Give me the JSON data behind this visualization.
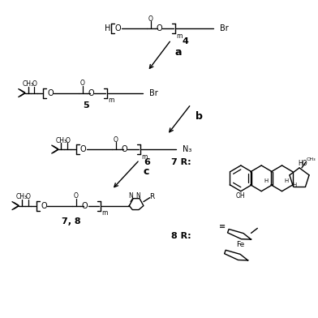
{
  "bg": "#ffffff",
  "fw": 3.92,
  "fh": 3.92,
  "dpi": 100,
  "compounds": {
    "c4_label": "4",
    "c5_label": "5",
    "c6_label": "6",
    "c78_label": "7, 8",
    "c7R_label": "7 R:",
    "c8R_label": "8 R:",
    "step_a": "a",
    "step_b": "b",
    "step_c": "c"
  }
}
